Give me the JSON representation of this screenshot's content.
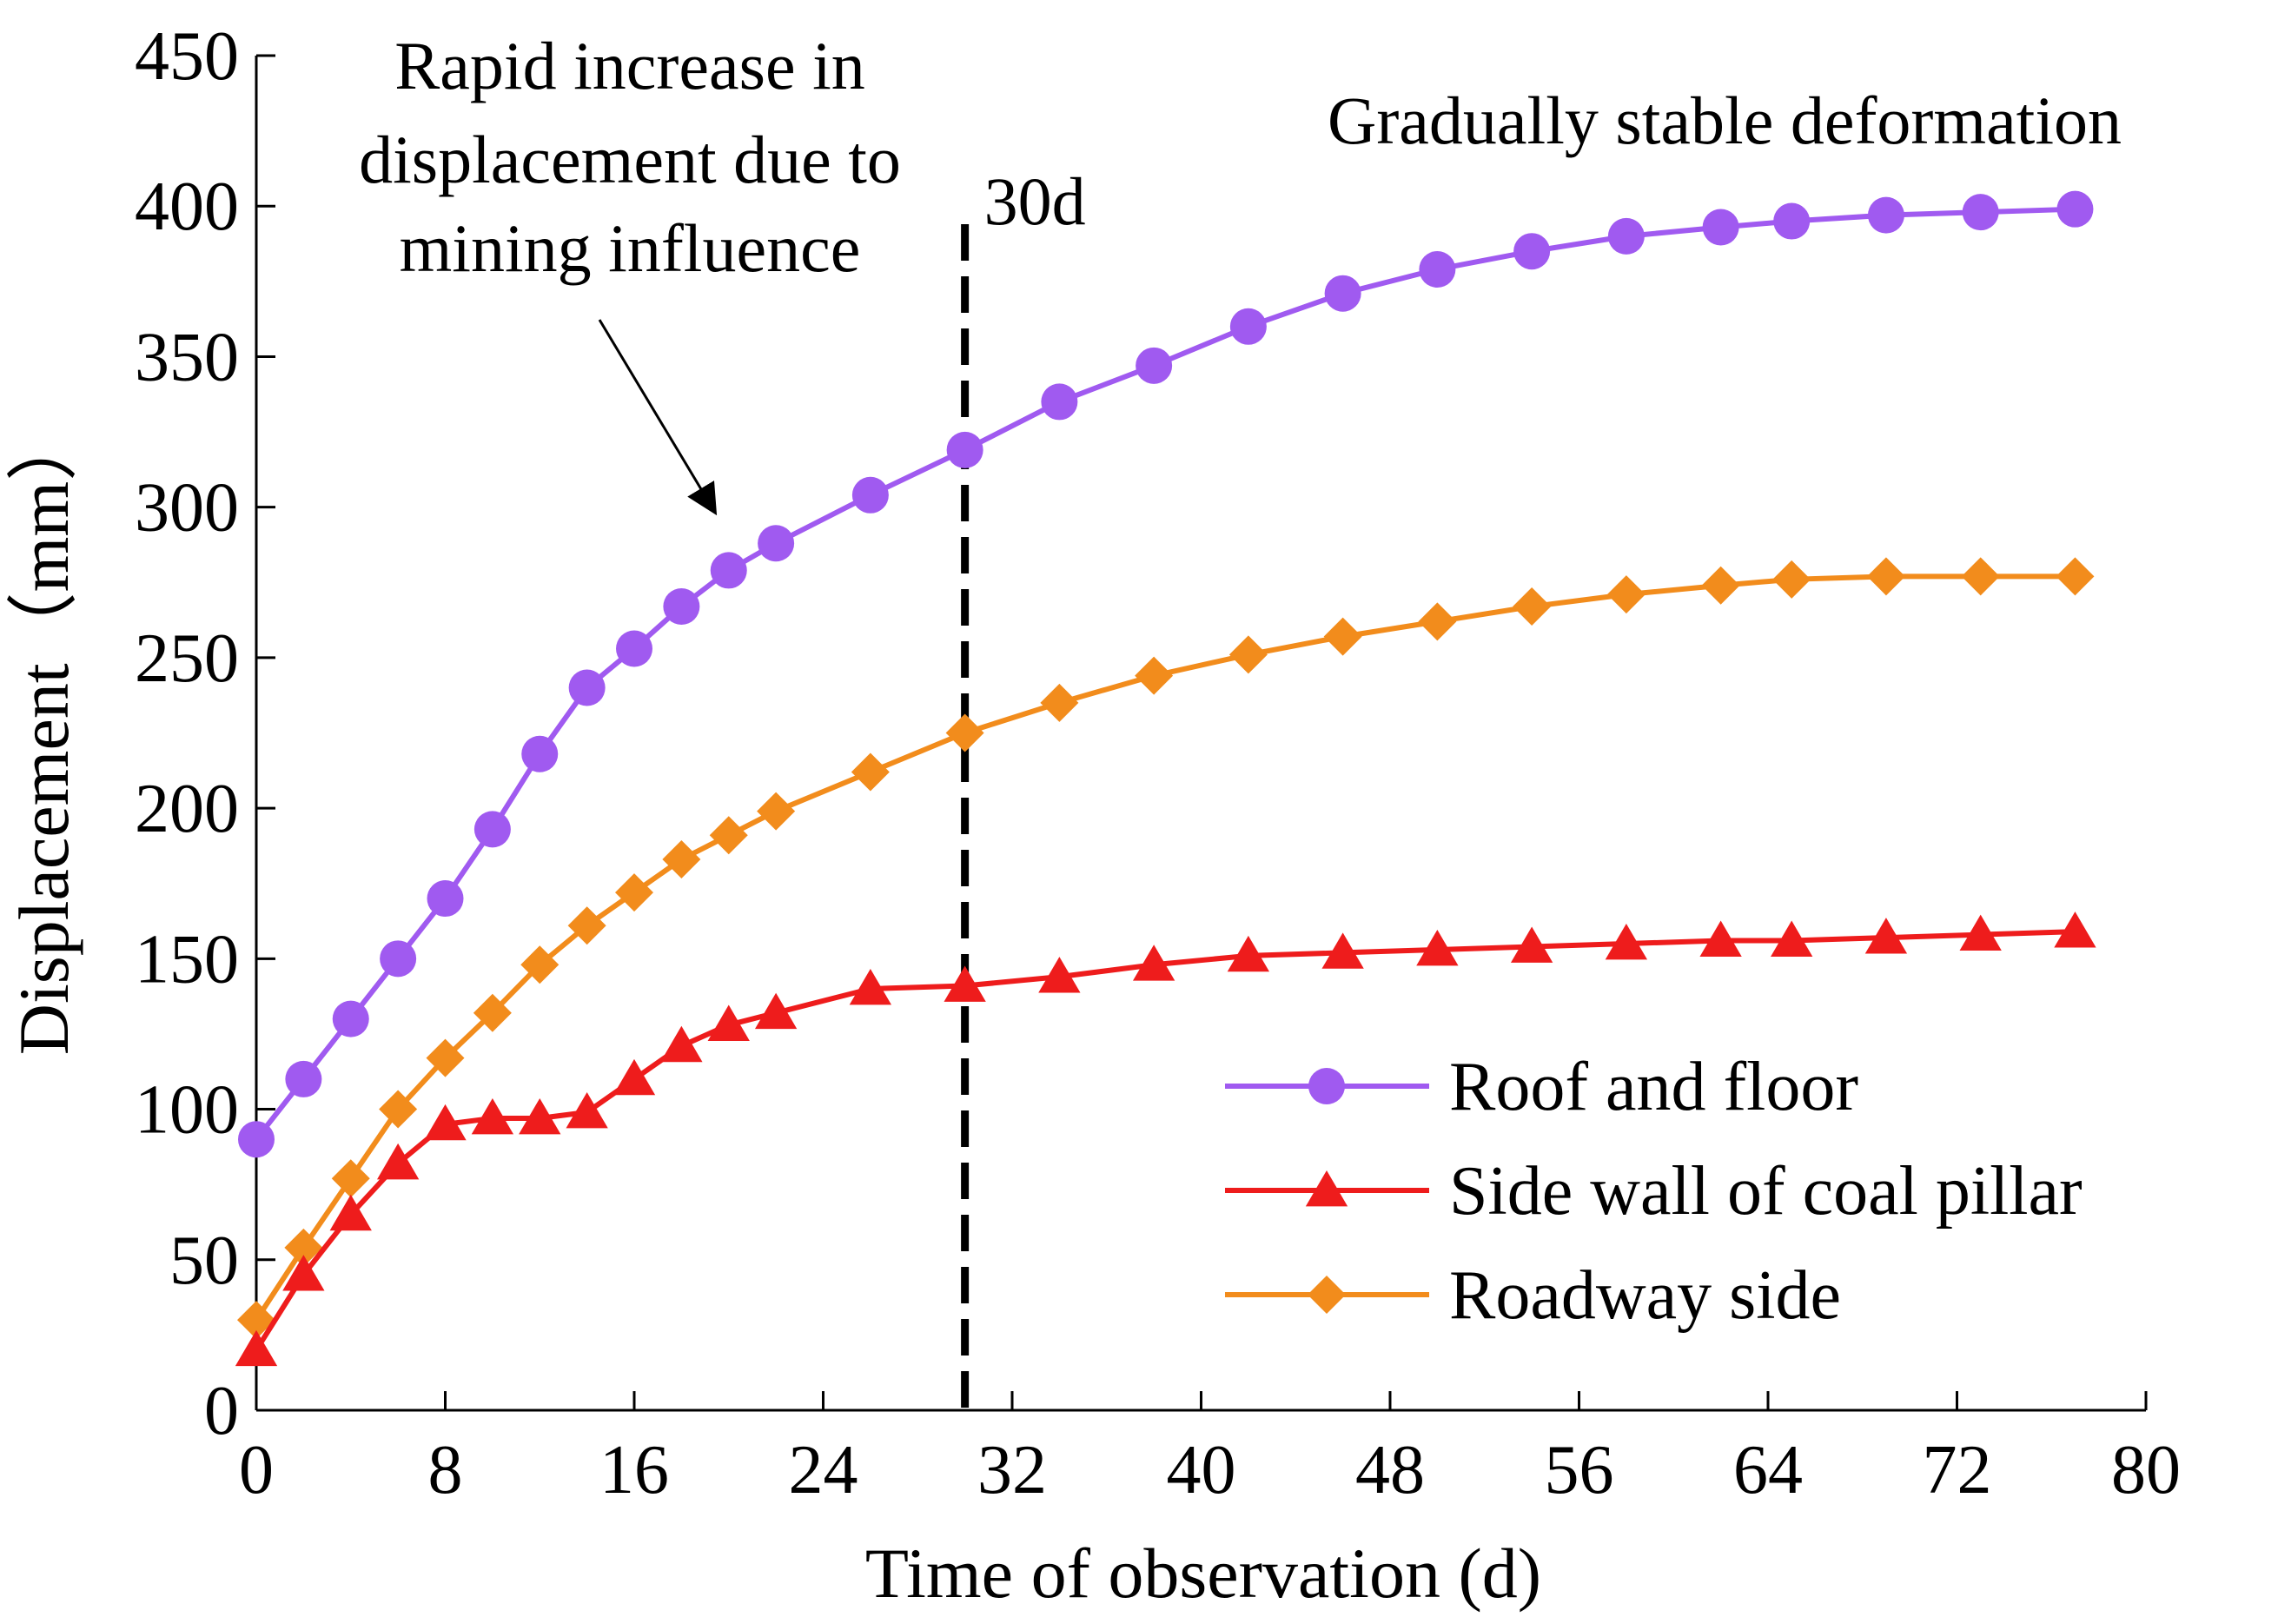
{
  "chart_data": {
    "type": "line",
    "title": "",
    "xlabel": "Time of observation (d)",
    "ylabel": "Displacement（mm）",
    "xlim": [
      0,
      80
    ],
    "ylim": [
      0,
      450
    ],
    "xticks": [
      0,
      8,
      16,
      24,
      32,
      40,
      48,
      56,
      64,
      72,
      80
    ],
    "yticks": [
      0,
      50,
      100,
      150,
      200,
      250,
      300,
      350,
      400,
      450
    ],
    "grid": false,
    "legend_position": "bottom-right",
    "series": [
      {
        "name": "Roof and floor",
        "marker": "circle",
        "color": "#a05af0",
        "x": [
          0,
          2,
          4,
          6,
          8,
          10,
          12,
          14,
          16,
          18,
          20,
          22,
          26,
          30,
          34,
          38,
          42,
          46,
          50,
          54,
          58,
          62,
          65,
          69,
          73,
          77
        ],
        "y": [
          90,
          110,
          130,
          150,
          170,
          193,
          218,
          240,
          253,
          267,
          279,
          288,
          304,
          319,
          335,
          347,
          360,
          371,
          379,
          385,
          390,
          393,
          395,
          397,
          398,
          399
        ]
      },
      {
        "name": "Side wall of coal pillar",
        "marker": "triangle",
        "color": "#ee1c1c",
        "x": [
          0,
          2,
          4,
          6,
          8,
          10,
          12,
          14,
          16,
          18,
          20,
          22,
          26,
          30,
          34,
          38,
          42,
          46,
          50,
          54,
          58,
          62,
          65,
          69,
          73,
          77
        ],
        "y": [
          20,
          45,
          65,
          82,
          95,
          97,
          97,
          99,
          110,
          121,
          128,
          132,
          140,
          141,
          144,
          148,
          151,
          152,
          153,
          154,
          155,
          156,
          156,
          157,
          158,
          159
        ]
      },
      {
        "name": "Roadway side",
        "marker": "diamond",
        "color": "#f28c1c",
        "x": [
          0,
          2,
          4,
          6,
          8,
          10,
          12,
          14,
          16,
          18,
          20,
          22,
          26,
          30,
          34,
          38,
          42,
          46,
          50,
          54,
          58,
          62,
          65,
          69,
          73,
          77
        ],
        "y": [
          30,
          54,
          77,
          100,
          117,
          132,
          148,
          161,
          172,
          183,
          191,
          199,
          212,
          225,
          235,
          244,
          251,
          257,
          262,
          267,
          271,
          274,
          276,
          277,
          277,
          277
        ]
      }
    ],
    "reference_lines": [
      {
        "x": 30,
        "label": "30d",
        "style": "dashed"
      }
    ],
    "annotations": [
      {
        "lines": [
          "Rapid increase in",
          "displacement due to",
          "mining influence"
        ],
        "arrow_to": {
          "x": 19.5,
          "y": 287
        }
      },
      {
        "lines": [
          "Gradually stable deformation"
        ]
      }
    ]
  }
}
